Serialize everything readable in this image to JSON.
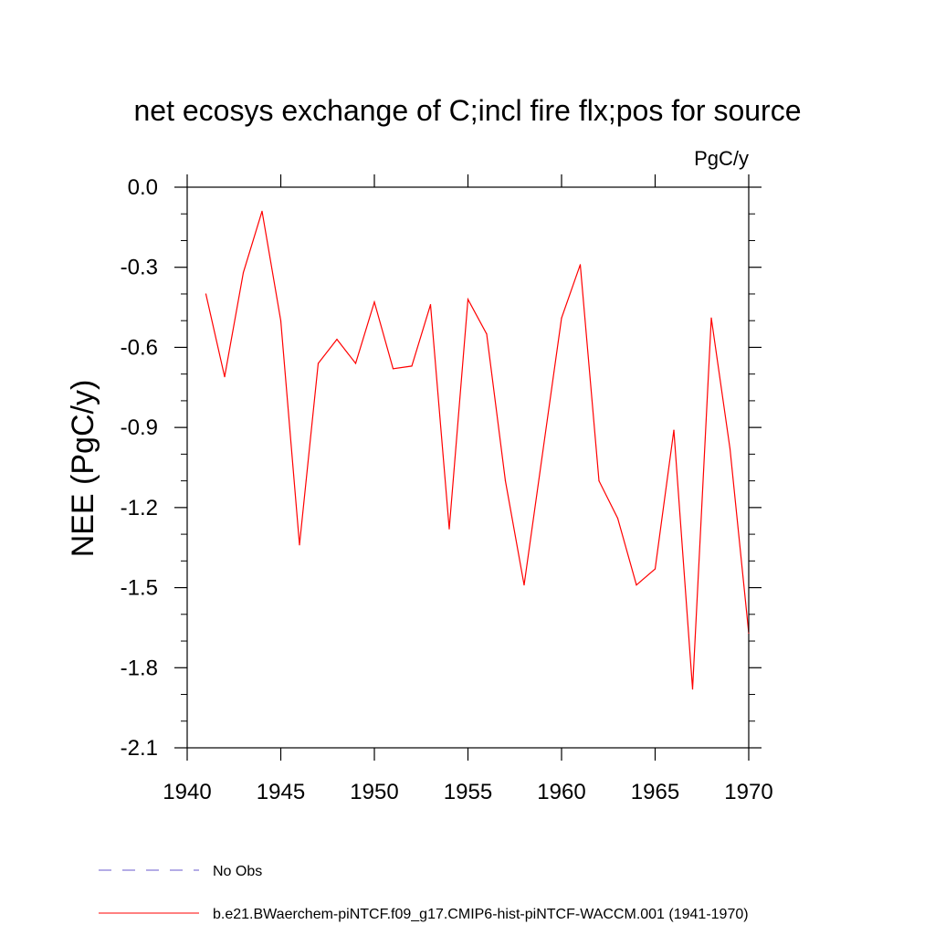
{
  "chart_data": {
    "type": "line",
    "title": "net ecosys exchange of C;incl fire flx;pos for source",
    "units": "PgC/y",
    "ylabel": "NEE  (PgC/y)",
    "xlabel": "",
    "xlim": [
      1940,
      1970
    ],
    "ylim": [
      -2.1,
      0.0
    ],
    "x_ticks": [
      1940,
      1945,
      1950,
      1955,
      1960,
      1965,
      1970
    ],
    "x_tick_labels": [
      "1940",
      "1945",
      "1950",
      "1955",
      "1960",
      "1965",
      "1970"
    ],
    "y_ticks": [
      0.0,
      -0.3,
      -0.6,
      -0.9,
      -1.2,
      -1.5,
      -1.8,
      -2.1
    ],
    "y_tick_labels": [
      "0.0",
      "-0.3",
      "-0.6",
      "-0.9",
      "-1.2",
      "-1.5",
      "-1.8",
      "-2.1"
    ],
    "grid": false,
    "legend_position": "bottom",
    "x": [
      1941,
      1942,
      1943,
      1944,
      1945,
      1946,
      1947,
      1948,
      1949,
      1950,
      1951,
      1952,
      1953,
      1954,
      1955,
      1956,
      1957,
      1958,
      1959,
      1960,
      1961,
      1962,
      1963,
      1964,
      1965,
      1966,
      1967,
      1968,
      1969,
      1970
    ],
    "series": [
      {
        "name": "b.e21.BWaerchem-piNTCF.f09_g17.CMIP6-hist-piNTCF-WACCM.001 (1941-1970)",
        "color": "#ff0000",
        "style": "solid",
        "values": [
          -0.4,
          -0.71,
          -0.32,
          -0.09,
          -0.5,
          -1.34,
          -0.66,
          -0.57,
          -0.66,
          -0.43,
          -0.68,
          -0.67,
          -0.44,
          -1.28,
          -0.42,
          -0.55,
          -1.1,
          -1.49,
          -0.99,
          -0.49,
          -0.29,
          -1.1,
          -1.24,
          -1.49,
          -1.43,
          -0.91,
          -1.88,
          -0.49,
          -0.98,
          -1.67
        ]
      }
    ],
    "legend": [
      {
        "label": "No Obs",
        "color": "#6a5acd",
        "style": "dashed"
      },
      {
        "label": "b.e21.BWaerchem-piNTCF.f09_g17.CMIP6-hist-piNTCF-WACCM.001 (1941-1970)",
        "color": "#ff0000",
        "style": "solid"
      }
    ]
  }
}
